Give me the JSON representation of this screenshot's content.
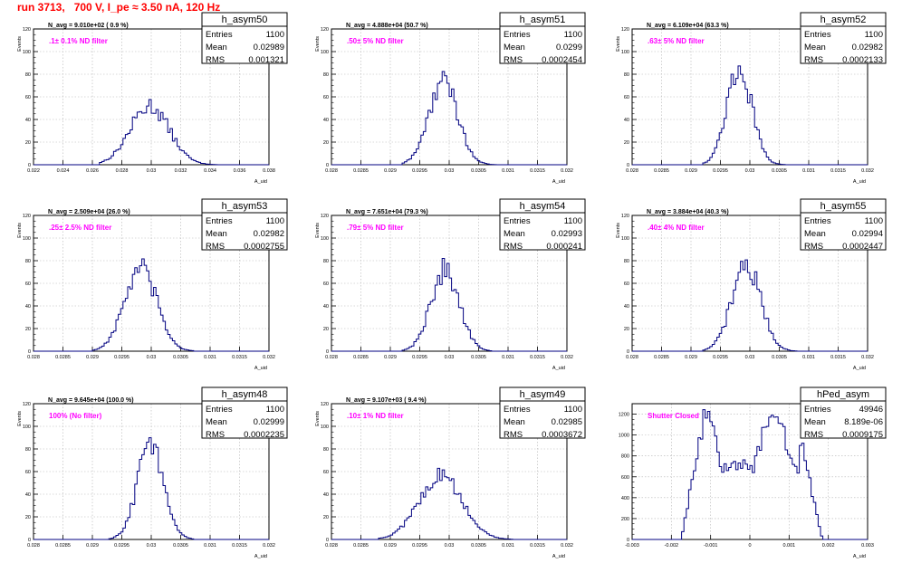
{
  "page": {
    "title": "run 3713,   700 V, I_pe ≈ 3.50 nA, 120 Hz"
  },
  "colors": {
    "histogram": "#000080",
    "grid": "#b4b4b4",
    "header": "#000000",
    "filter_label": "#ff00ff",
    "title_text": "#ff0000"
  },
  "chart_data": [
    {
      "type": "histogram",
      "name": "h_asym50",
      "stats": {
        "Entries": "1100",
        "Mean": "0.02989",
        "RMS": "0.001321"
      },
      "header": "N_avg = 9.010e+02 ( 0.9 %)",
      "filter_label": ".1± 0.1% ND filter",
      "xlabel": "A_uid",
      "ylabel": "Events",
      "xlim": [
        0.022,
        0.038
      ],
      "ylim": [
        0,
        120
      ],
      "x_ticks": [
        0.022,
        0.024,
        0.026,
        0.028,
        0.03,
        0.032,
        0.034,
        0.036,
        0.038
      ],
      "x_tick_labels": [
        "0.022",
        "0.024",
        "0.026",
        "0.028",
        "0.03",
        "0.032",
        "0.034",
        "0.036",
        "0.038"
      ],
      "y_ticks": [
        0,
        20,
        40,
        60,
        80,
        100,
        120
      ],
      "shape": {
        "mean": 0.02989,
        "sigma": 0.00132,
        "peak": 52,
        "min_x": 0.0265,
        "max_x": 0.0345
      }
    },
    {
      "type": "histogram",
      "name": "h_asym51",
      "stats": {
        "Entries": "1100",
        "Mean": "0.0299",
        "RMS": "0.0002454"
      },
      "header": "N_avg = 4.888e+04 (50.7 %)",
      "filter_label": ".50± 5% ND filter",
      "xlabel": "A_uid",
      "ylabel": "Events",
      "xlim": [
        0.028,
        0.032
      ],
      "ylim": [
        0,
        120
      ],
      "x_ticks": [
        0.028,
        0.0285,
        0.029,
        0.0295,
        0.03,
        0.0305,
        0.031,
        0.0315,
        0.032
      ],
      "x_tick_labels": [
        "0.028",
        "0.0285",
        "0.029",
        "0.0295",
        "0.03",
        "0.0305",
        "0.031",
        "0.0315",
        "0.032"
      ],
      "y_ticks": [
        0,
        20,
        40,
        60,
        80,
        100,
        120
      ],
      "shape": {
        "mean": 0.0299,
        "sigma": 0.000245,
        "peak": 74,
        "min_x": 0.0292,
        "max_x": 0.0308
      }
    },
    {
      "type": "histogram",
      "name": "h_asym52",
      "stats": {
        "Entries": "1100",
        "Mean": "0.02982",
        "RMS": "0.0002133"
      },
      "header": "N_avg = 6.109e+04 (63.3 %)",
      "filter_label": ".63± 5% ND filter",
      "xlabel": "A_uid",
      "ylabel": "Events",
      "xlim": [
        0.028,
        0.032
      ],
      "ylim": [
        0,
        120
      ],
      "x_ticks": [
        0.028,
        0.0285,
        0.029,
        0.0295,
        0.03,
        0.0305,
        0.031,
        0.0315,
        0.032
      ],
      "x_tick_labels": [
        "0.028",
        "0.0285",
        "0.029",
        "0.0295",
        "0.03",
        "0.0305",
        "0.031",
        "0.0315",
        "0.032"
      ],
      "y_ticks": [
        0,
        20,
        40,
        60,
        80,
        100,
        120
      ],
      "shape": {
        "mean": 0.02982,
        "sigma": 0.000213,
        "peak": 85,
        "min_x": 0.0292,
        "max_x": 0.0306
      }
    },
    {
      "type": "histogram",
      "name": "h_asym53",
      "stats": {
        "Entries": "1100",
        "Mean": "0.02982",
        "RMS": "0.0002755"
      },
      "header": "N_avg = 2.509e+04 (26.0 %)",
      "filter_label": ".25± 2.5% ND filter",
      "xlabel": "A_uid",
      "ylabel": "Events",
      "xlim": [
        0.028,
        0.032
      ],
      "ylim": [
        0,
        120
      ],
      "x_ticks": [
        0.028,
        0.0285,
        0.029,
        0.0295,
        0.03,
        0.0305,
        0.031,
        0.0315,
        0.032
      ],
      "x_tick_labels": [
        "0.028",
        "0.0285",
        "0.029",
        "0.0295",
        "0.03",
        "0.0305",
        "0.031",
        "0.0315",
        "0.032"
      ],
      "y_ticks": [
        0,
        20,
        40,
        60,
        80,
        100,
        120
      ],
      "shape": {
        "mean": 0.02982,
        "sigma": 0.000275,
        "peak": 72,
        "min_x": 0.029,
        "max_x": 0.0307
      }
    },
    {
      "type": "histogram",
      "name": "h_asym54",
      "stats": {
        "Entries": "1100",
        "Mean": "0.02993",
        "RMS": "0.000241"
      },
      "header": "N_avg = 7.651e+04 (79.3 %)",
      "filter_label": ".79± 5% ND filter",
      "xlabel": "A_uid",
      "ylabel": "Events",
      "xlim": [
        0.028,
        0.032
      ],
      "ylim": [
        0,
        120
      ],
      "x_ticks": [
        0.028,
        0.0285,
        0.029,
        0.0295,
        0.03,
        0.0305,
        0.031,
        0.0315,
        0.032
      ],
      "x_tick_labels": [
        "0.028",
        "0.0285",
        "0.029",
        "0.0295",
        "0.03",
        "0.0305",
        "0.031",
        "0.0315",
        "0.032"
      ],
      "y_ticks": [
        0,
        20,
        40,
        60,
        80,
        100,
        120
      ],
      "shape": {
        "mean": 0.02993,
        "sigma": 0.000241,
        "peak": 72,
        "min_x": 0.0292,
        "max_x": 0.0307
      }
    },
    {
      "type": "histogram",
      "name": "h_asym55",
      "stats": {
        "Entries": "1100",
        "Mean": "0.02994",
        "RMS": "0.0002447"
      },
      "header": "N_avg = 3.884e+04 (40.3 %)",
      "filter_label": ".40± 4% ND filter",
      "xlabel": "A_uid",
      "ylabel": "Events",
      "xlim": [
        0.028,
        0.032
      ],
      "ylim": [
        0,
        120
      ],
      "x_ticks": [
        0.028,
        0.0285,
        0.029,
        0.0295,
        0.03,
        0.0305,
        0.031,
        0.0315,
        0.032
      ],
      "x_tick_labels": [
        "0.028",
        "0.0285",
        "0.029",
        "0.0295",
        "0.03",
        "0.0305",
        "0.031",
        "0.0315",
        "0.032"
      ],
      "y_ticks": [
        0,
        20,
        40,
        60,
        80,
        100,
        120
      ],
      "shape": {
        "mean": 0.02994,
        "sigma": 0.000245,
        "peak": 76,
        "min_x": 0.0292,
        "max_x": 0.0308
      }
    },
    {
      "type": "histogram",
      "name": "h_asym48",
      "stats": {
        "Entries": "1100",
        "Mean": "0.02999",
        "RMS": "0.0002235"
      },
      "header": "N_avg = 9.645e+04 (100.0 %)",
      "filter_label": "100% (No filter)",
      "xlabel": "A_uid",
      "ylabel": "Events",
      "xlim": [
        0.028,
        0.032
      ],
      "ylim": [
        0,
        120
      ],
      "x_ticks": [
        0.028,
        0.0285,
        0.029,
        0.0295,
        0.03,
        0.0305,
        0.031,
        0.0315,
        0.032
      ],
      "x_tick_labels": [
        "0.028",
        "0.0285",
        "0.029",
        "0.0295",
        "0.03",
        "0.0305",
        "0.031",
        "0.0315",
        "0.032"
      ],
      "y_ticks": [
        0,
        20,
        40,
        60,
        80,
        100,
        120
      ],
      "shape": {
        "mean": 0.02999,
        "sigma": 0.000223,
        "peak": 84,
        "min_x": 0.0293,
        "max_x": 0.0307
      }
    },
    {
      "type": "histogram",
      "name": "h_asym49",
      "stats": {
        "Entries": "1100",
        "Mean": "0.02985",
        "RMS": "0.0003672"
      },
      "header": "N_avg = 9.107e+03 ( 9.4 %)",
      "filter_label": ".10± 1% ND filter",
      "xlabel": "A_uid",
      "ylabel": "Events",
      "xlim": [
        0.028,
        0.032
      ],
      "ylim": [
        0,
        120
      ],
      "x_ticks": [
        0.028,
        0.0285,
        0.029,
        0.0295,
        0.03,
        0.0305,
        0.031,
        0.0315,
        0.032
      ],
      "x_tick_labels": [
        "0.028",
        "0.0285",
        "0.029",
        "0.0295",
        "0.03",
        "0.0305",
        "0.031",
        "0.0315",
        "0.032"
      ],
      "y_ticks": [
        0,
        20,
        40,
        60,
        80,
        100,
        120
      ],
      "shape": {
        "mean": 0.02985,
        "sigma": 0.000367,
        "peak": 56,
        "min_x": 0.0288,
        "max_x": 0.0311
      }
    },
    {
      "type": "histogram",
      "name": "hPed_asym",
      "stats": {
        "Entries": "49946",
        "Mean": "8.189e-06",
        "RMS": "0.0009175"
      },
      "header": "",
      "filter_label": "Shutter Closed",
      "xlabel": "A_uid",
      "ylabel": "",
      "xlim": [
        -0.003,
        0.003
      ],
      "ylim": [
        0,
        1300
      ],
      "x_ticks": [
        -0.003,
        -0.002,
        -0.001,
        0,
        0.001,
        0.002,
        0.003
      ],
      "x_tick_labels": [
        "-0.003",
        "-0.002",
        "-0.001",
        "0",
        "0.001",
        "0.002",
        "0.003"
      ],
      "y_ticks": [
        0,
        200,
        400,
        600,
        800,
        1000,
        1200
      ],
      "shape": {
        "bimodal": true,
        "peak1": -0.0011,
        "peak2": 0.0006,
        "peak": 1200,
        "valley": 720,
        "min_x": -0.00175,
        "max_x": 0.00185
      }
    }
  ]
}
